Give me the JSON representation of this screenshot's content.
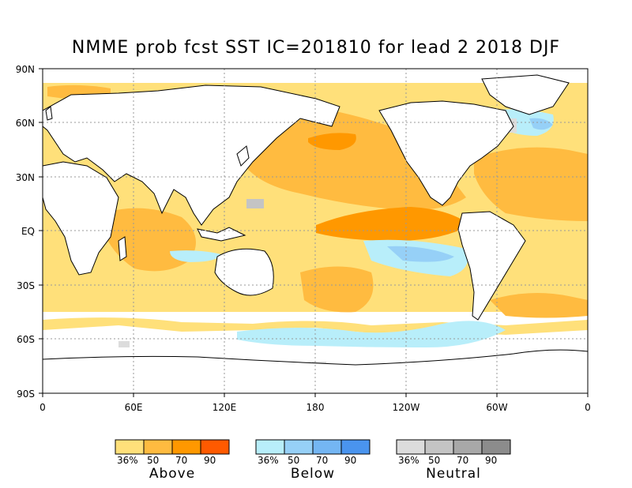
{
  "title": "NMME prob fcst SST IC=201810 for lead 2 2018 DJF",
  "y_ticks": [
    "90N",
    "60N",
    "30N",
    "EQ",
    "30S",
    "60S",
    "90S"
  ],
  "x_ticks": [
    "0",
    "60E",
    "120E",
    "180",
    "120W",
    "60W",
    "0"
  ],
  "legends": [
    {
      "name": "Above",
      "labels": [
        "36%",
        "50",
        "70",
        "90"
      ],
      "colors": [
        "#ffe07a",
        "#ffbb40",
        "#ff9800",
        "#ff5a00"
      ]
    },
    {
      "name": "Below",
      "labels": [
        "36%",
        "50",
        "70",
        "90"
      ],
      "colors": [
        "#b8eefa",
        "#96d0f7",
        "#74b6f3",
        "#4a94ee"
      ]
    },
    {
      "name": "Neutral",
      "labels": [
        "36%",
        "50",
        "70",
        "90"
      ],
      "colors": [
        "#dcdcdc",
        "#c4c4c4",
        "#a8a8a8",
        "#8c8c8c"
      ]
    }
  ],
  "colors": {
    "land": "#ffffff",
    "ocean_default": "#ffe07a",
    "grid": "#999999",
    "coast": "#000000"
  }
}
